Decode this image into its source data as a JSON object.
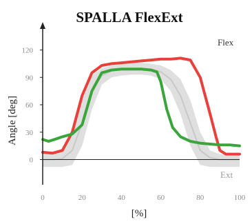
{
  "chart_data": {
    "type": "line",
    "title": "SPALLA FlexExt",
    "xlabel": "[%]",
    "ylabel": "Angle [deg]",
    "xlim": [
      0,
      100
    ],
    "ylim": [
      -20,
      140
    ],
    "x_ticks": [
      0,
      20,
      40,
      60,
      80,
      100
    ],
    "y_ticks": [
      0,
      30,
      60,
      90,
      120
    ],
    "grid": false,
    "annotations": [
      {
        "id": "flex",
        "text": "Flex"
      },
      {
        "id": "ext",
        "text": "Ext"
      }
    ],
    "colors": {
      "red": "#e8413c",
      "green": "#3aa53a",
      "band": "#dcdcdc",
      "mean": "#c8c8c8",
      "axis": "#222222"
    },
    "reference_band": {
      "x": [
        0,
        5,
        10,
        15,
        20,
        25,
        30,
        35,
        40,
        45,
        50,
        55,
        60,
        65,
        70,
        75,
        80,
        85,
        90,
        95,
        100
      ],
      "mean": [
        0,
        0,
        1,
        10,
        40,
        75,
        92,
        97,
        99,
        100,
        100,
        99,
        96,
        88,
        70,
        40,
        10,
        2,
        0,
        0,
        0
      ],
      "upper": [
        8,
        8,
        12,
        30,
        65,
        92,
        100,
        103,
        105,
        106,
        106,
        105,
        103,
        98,
        88,
        65,
        30,
        10,
        6,
        5,
        5
      ],
      "lower": [
        -8,
        -8,
        -8,
        -6,
        15,
        55,
        82,
        90,
        92,
        93,
        93,
        92,
        88,
        75,
        50,
        15,
        -6,
        -8,
        -8,
        -8,
        -8
      ]
    },
    "series": [
      {
        "color": "red",
        "x": [
          0,
          5,
          10,
          15,
          20,
          25,
          30,
          35,
          40,
          45,
          50,
          55,
          60,
          65,
          70,
          75,
          80,
          85,
          88,
          90,
          93,
          95,
          100
        ],
        "values": [
          8,
          7,
          10,
          30,
          70,
          95,
          103,
          105,
          106,
          107,
          108,
          109,
          110,
          110,
          111,
          109,
          90,
          50,
          25,
          10,
          6,
          6,
          6
        ]
      },
      {
        "color": "green",
        "x": [
          0,
          3,
          6,
          10,
          15,
          20,
          25,
          30,
          35,
          40,
          45,
          50,
          55,
          58,
          60,
          63,
          66,
          70,
          75,
          80,
          85,
          90,
          95,
          100
        ],
        "values": [
          22,
          20,
          22,
          25,
          28,
          38,
          75,
          95,
          98,
          99,
          99,
          99,
          98,
          96,
          85,
          55,
          35,
          25,
          20,
          18,
          17,
          16,
          16,
          15
        ]
      }
    ]
  }
}
